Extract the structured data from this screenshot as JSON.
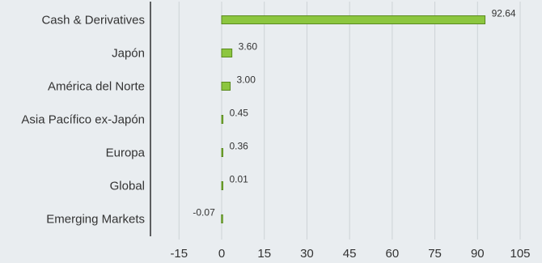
{
  "chart_data": {
    "type": "bar",
    "orientation": "horizontal",
    "categories": [
      "Cash & Derivatives",
      "Japón",
      "América del Norte",
      "Asia Pacífico ex-Japón",
      "Europa",
      "Global",
      "Emerging Markets"
    ],
    "values": [
      92.64,
      3.6,
      3.0,
      0.45,
      0.36,
      0.01,
      -0.07
    ],
    "data_labels": [
      "92.64",
      "3.60",
      "3.00",
      "0.45",
      "0.36",
      "0.01",
      "-0.07"
    ],
    "xlim": [
      -25,
      105
    ],
    "xticks": [
      -15,
      0,
      15,
      30,
      45,
      60,
      75,
      90,
      105
    ],
    "grid": true,
    "colors": {
      "bar_fill": "#8cc63f",
      "bar_stroke": "#5a8a1f",
      "gridline": "#cdd2d6",
      "background": "#e9edf0",
      "axis": "#000000"
    }
  }
}
